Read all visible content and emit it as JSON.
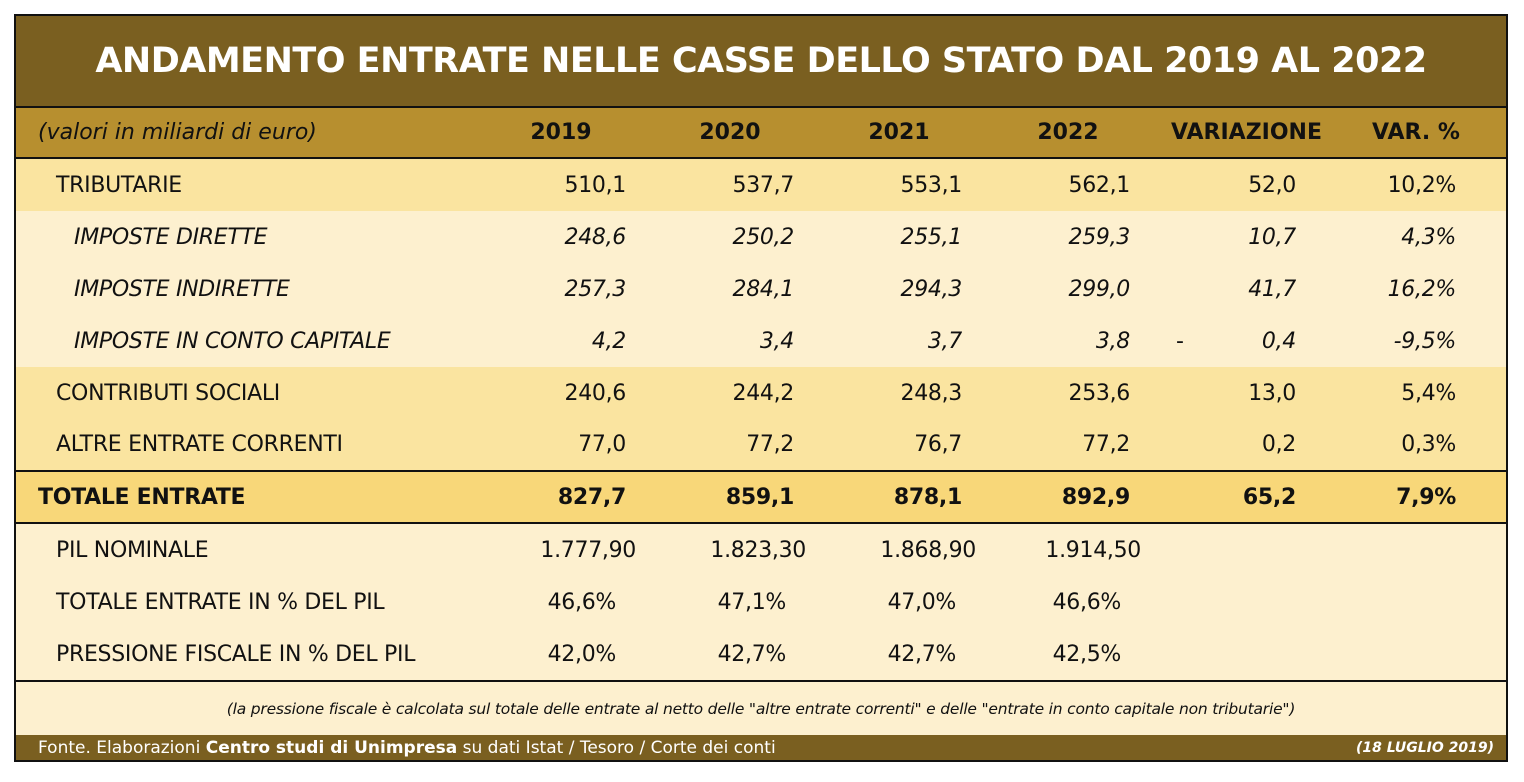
{
  "title": "ANDAMENTO ENTRATE NELLE CASSE DELLO STATO DAL 2019 AL 2022",
  "header": {
    "unit_label": "(valori in miliardi di euro)",
    "columns": [
      "2019",
      "2020",
      "2021",
      "2022",
      "VARIAZIONE",
      "VAR. %"
    ]
  },
  "rows": [
    {
      "label": "TRIBUTARIE",
      "values": [
        "510,1",
        "537,7",
        "553,1",
        "562,1",
        "52,0",
        "10,2%"
      ]
    },
    {
      "label": "IMPOSTE DIRETTE",
      "values": [
        "248,6",
        "250,2",
        "255,1",
        "259,3",
        "10,7",
        "4,3%"
      ]
    },
    {
      "label": "IMPOSTE INDIRETTE",
      "values": [
        "257,3",
        "284,1",
        "294,3",
        "299,0",
        "41,7",
        "16,2%"
      ]
    },
    {
      "label": "IMPOSTE IN CONTO CAPITALE",
      "minus": "-",
      "values": [
        "4,2",
        "3,4",
        "3,7",
        "3,8",
        "0,4",
        "-9,5%"
      ]
    },
    {
      "label": "CONTRIBUTI SOCIALI",
      "values": [
        "240,6",
        "244,2",
        "248,3",
        "253,6",
        "13,0",
        "5,4%"
      ]
    },
    {
      "label": "ALTRE ENTRATE CORRENTI",
      "values": [
        "77,0",
        "77,2",
        "76,7",
        "77,2",
        "0,2",
        "0,3%"
      ]
    }
  ],
  "total": {
    "label": "TOTALE ENTRATE",
    "values": [
      "827,7",
      "859,1",
      "878,1",
      "892,9",
      "65,2",
      "7,9%"
    ]
  },
  "pil_rows": [
    {
      "label": "PIL NOMINALE",
      "values": [
        "1.777,90",
        "1.823,30",
        "1.868,90",
        "1.914,50"
      ]
    },
    {
      "label": "TOTALE ENTRATE IN % DEL PIL",
      "values": [
        "46,6%",
        "47,1%",
        "47,0%",
        "46,6%"
      ]
    },
    {
      "label": "PRESSIONE FISCALE IN % DEL PIL",
      "values": [
        "42,0%",
        "42,7%",
        "42,7%",
        "42,5%"
      ]
    }
  ],
  "note": "(la pressione fiscale è calcolata sul totale delle entrate al netto delle \"altre entrate correnti\" e delle \"entrate in conto capitale non tributarie\")",
  "footer": {
    "source_prefix": "Fonte. Elaborazioni ",
    "source_bold": "Centro studi di Unimpresa",
    "source_suffix": " su dati Istat / Tesoro / Corte dei conti",
    "date": "(18 LUGLIO 2019)"
  },
  "colors": {
    "title_bg": "#7a5f20",
    "header_bg": "#b78f2f",
    "main_row_bg": "#fae4a0",
    "sub_row_bg": "#fdf0cf",
    "total_bg": "#f8d779"
  }
}
